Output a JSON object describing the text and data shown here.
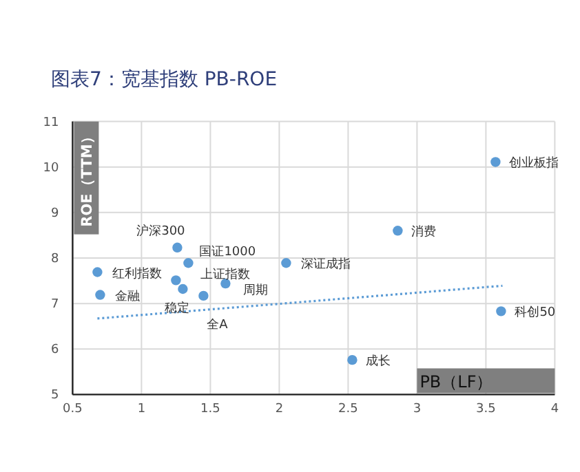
{
  "chart_data": {
    "type": "scatter",
    "title": "图表7：宽基指数 PB-ROE",
    "xlabel": "PB（LF）",
    "ylabel": "ROE（TTM）",
    "xlim": [
      0.5,
      4
    ],
    "xticks": [
      0.5,
      1,
      1.5,
      2,
      2.5,
      3,
      3.5,
      4
    ],
    "ylim": [
      5,
      11
    ],
    "yticks": [
      5,
      6,
      7,
      8,
      9,
      10,
      11
    ],
    "grid": true,
    "marker": "circle",
    "series": [
      {
        "color": "#5b9bd5",
        "x": [
          1.26,
          1.34,
          0.68,
          1.25,
          1.3,
          0.7,
          1.45,
          1.61,
          2.05,
          3.57,
          2.86,
          3.61,
          2.53
        ],
        "values": [
          8.23,
          7.89,
          7.69,
          7.51,
          7.32,
          7.19,
          7.17,
          7.44,
          7.89,
          10.11,
          8.6,
          6.83,
          5.76
        ]
      },
      {
        "type": "line",
        "line_style": "dotted",
        "marker": "none",
        "color": "#5b9bd5",
        "x": [
          0.68,
          3.62
        ],
        "values": [
          6.67,
          7.39
        ]
      }
    ],
    "annotations": [
      {
        "text": "沪深300",
        "x": 1.26,
        "y": 8.23
      },
      {
        "text": "国证1000",
        "x": 1.34,
        "y": 7.89
      },
      {
        "text": "红利指数",
        "x": 0.68,
        "y": 7.69
      },
      {
        "text": "上证指数",
        "x": 1.25,
        "y": 7.51
      },
      {
        "text": "稳定",
        "x": 1.3,
        "y": 7.32
      },
      {
        "text": "金融",
        "x": 0.7,
        "y": 7.19
      },
      {
        "text": "全A",
        "x": 1.45,
        "y": 7.17
      },
      {
        "text": "周期",
        "x": 1.61,
        "y": 7.44
      },
      {
        "text": "深证成指",
        "x": 2.05,
        "y": 7.89
      },
      {
        "text": "创业板指",
        "x": 3.57,
        "y": 10.11
      },
      {
        "text": "消费",
        "x": 2.86,
        "y": 8.6
      },
      {
        "text": "科创50",
        "x": 3.61,
        "y": 6.83
      },
      {
        "text": "成长",
        "x": 2.53,
        "y": 5.76
      }
    ]
  }
}
